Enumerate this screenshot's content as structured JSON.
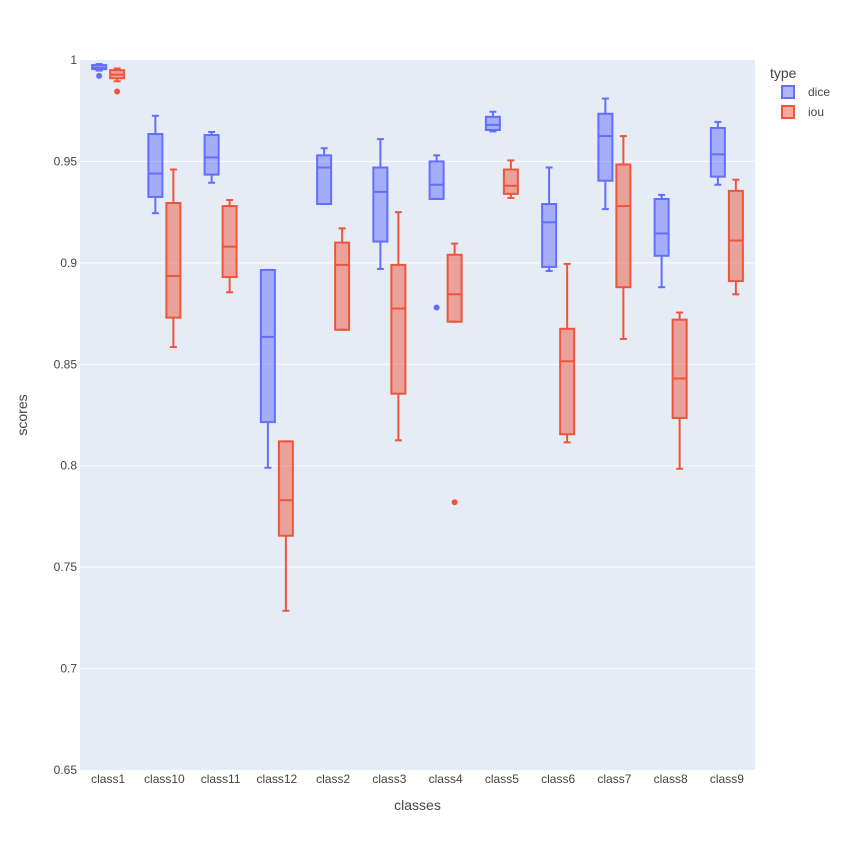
{
  "chart_data": {
    "type": "box",
    "xlabel": "classes",
    "ylabel": "scores",
    "ylim": [
      0.65,
      1.0
    ],
    "yticks": [
      0.65,
      0.7,
      0.75,
      0.8,
      0.85,
      0.9,
      0.95,
      1
    ],
    "ytick_labels": [
      "0.65",
      "0.7",
      "0.75",
      "0.8",
      "0.85",
      "0.9",
      "0.95",
      "1"
    ],
    "categories": [
      "class1",
      "class10",
      "class11",
      "class12",
      "class2",
      "class3",
      "class4",
      "class5",
      "class6",
      "class7",
      "class8",
      "class9"
    ],
    "grid": true,
    "legend": {
      "title": "type",
      "placement": "top-right"
    },
    "series": [
      {
        "name": "dice",
        "color": "#636efa",
        "fill": "rgba(99,110,250,0.5)",
        "boxes": [
          {
            "min": 0.9948,
            "q1": 0.9955,
            "median": 0.9962,
            "q3": 0.9975,
            "max": 0.998,
            "outliers": [
              0.9922
            ]
          },
          {
            "min": 0.9245,
            "q1": 0.9325,
            "median": 0.944,
            "q3": 0.9635,
            "max": 0.9725,
            "outliers": []
          },
          {
            "min": 0.9395,
            "q1": 0.9435,
            "median": 0.952,
            "q3": 0.963,
            "max": 0.9645,
            "outliers": []
          },
          {
            "min": 0.799,
            "q1": 0.8215,
            "median": 0.8635,
            "q3": 0.8965,
            "max": 0.8965,
            "outliers": []
          },
          {
            "min": 0.929,
            "q1": 0.929,
            "median": 0.947,
            "q3": 0.953,
            "max": 0.9565,
            "outliers": []
          },
          {
            "min": 0.897,
            "q1": 0.9105,
            "median": 0.935,
            "q3": 0.947,
            "max": 0.961,
            "outliers": []
          },
          {
            "min": 0.9315,
            "q1": 0.9315,
            "median": 0.9385,
            "q3": 0.95,
            "max": 0.953,
            "outliers": [
              0.878
            ]
          },
          {
            "min": 0.9648,
            "q1": 0.9655,
            "median": 0.968,
            "q3": 0.972,
            "max": 0.9745,
            "outliers": []
          },
          {
            "min": 0.896,
            "q1": 0.898,
            "median": 0.92,
            "q3": 0.929,
            "max": 0.947,
            "outliers": []
          },
          {
            "min": 0.9265,
            "q1": 0.9405,
            "median": 0.9625,
            "q3": 0.9735,
            "max": 0.981,
            "outliers": []
          },
          {
            "min": 0.888,
            "q1": 0.9035,
            "median": 0.9145,
            "q3": 0.9315,
            "max": 0.9335,
            "outliers": []
          },
          {
            "min": 0.9385,
            "q1": 0.9425,
            "median": 0.9535,
            "q3": 0.9665,
            "max": 0.9695,
            "outliers": []
          }
        ]
      },
      {
        "name": "iou",
        "color": "#ef553b",
        "fill": "rgba(239,85,59,0.5)",
        "boxes": [
          {
            "min": 0.9895,
            "q1": 0.991,
            "median": 0.9928,
            "q3": 0.995,
            "max": 0.9958,
            "outliers": [
              0.9845
            ]
          },
          {
            "min": 0.8585,
            "q1": 0.873,
            "median": 0.8935,
            "q3": 0.9295,
            "max": 0.946,
            "outliers": []
          },
          {
            "min": 0.8855,
            "q1": 0.893,
            "median": 0.908,
            "q3": 0.928,
            "max": 0.931,
            "outliers": []
          },
          {
            "min": 0.7285,
            "q1": 0.7655,
            "median": 0.783,
            "q3": 0.812,
            "max": 0.812,
            "outliers": []
          },
          {
            "min": 0.867,
            "q1": 0.867,
            "median": 0.899,
            "q3": 0.91,
            "max": 0.917,
            "outliers": []
          },
          {
            "min": 0.8125,
            "q1": 0.8355,
            "median": 0.8775,
            "q3": 0.899,
            "max": 0.925,
            "outliers": []
          },
          {
            "min": 0.871,
            "q1": 0.871,
            "median": 0.8845,
            "q3": 0.904,
            "max": 0.9095,
            "outliers": [
              0.782
            ]
          },
          {
            "min": 0.932,
            "q1": 0.934,
            "median": 0.938,
            "q3": 0.946,
            "max": 0.9505,
            "outliers": []
          },
          {
            "min": 0.8115,
            "q1": 0.8155,
            "median": 0.8515,
            "q3": 0.8675,
            "max": 0.8995,
            "outliers": []
          },
          {
            "min": 0.8625,
            "q1": 0.888,
            "median": 0.928,
            "q3": 0.9485,
            "max": 0.9625,
            "outliers": []
          },
          {
            "min": 0.7985,
            "q1": 0.8235,
            "median": 0.843,
            "q3": 0.872,
            "max": 0.8755,
            "outliers": []
          },
          {
            "min": 0.8845,
            "q1": 0.891,
            "median": 0.911,
            "q3": 0.9355,
            "max": 0.941,
            "outliers": []
          }
        ]
      }
    ]
  }
}
